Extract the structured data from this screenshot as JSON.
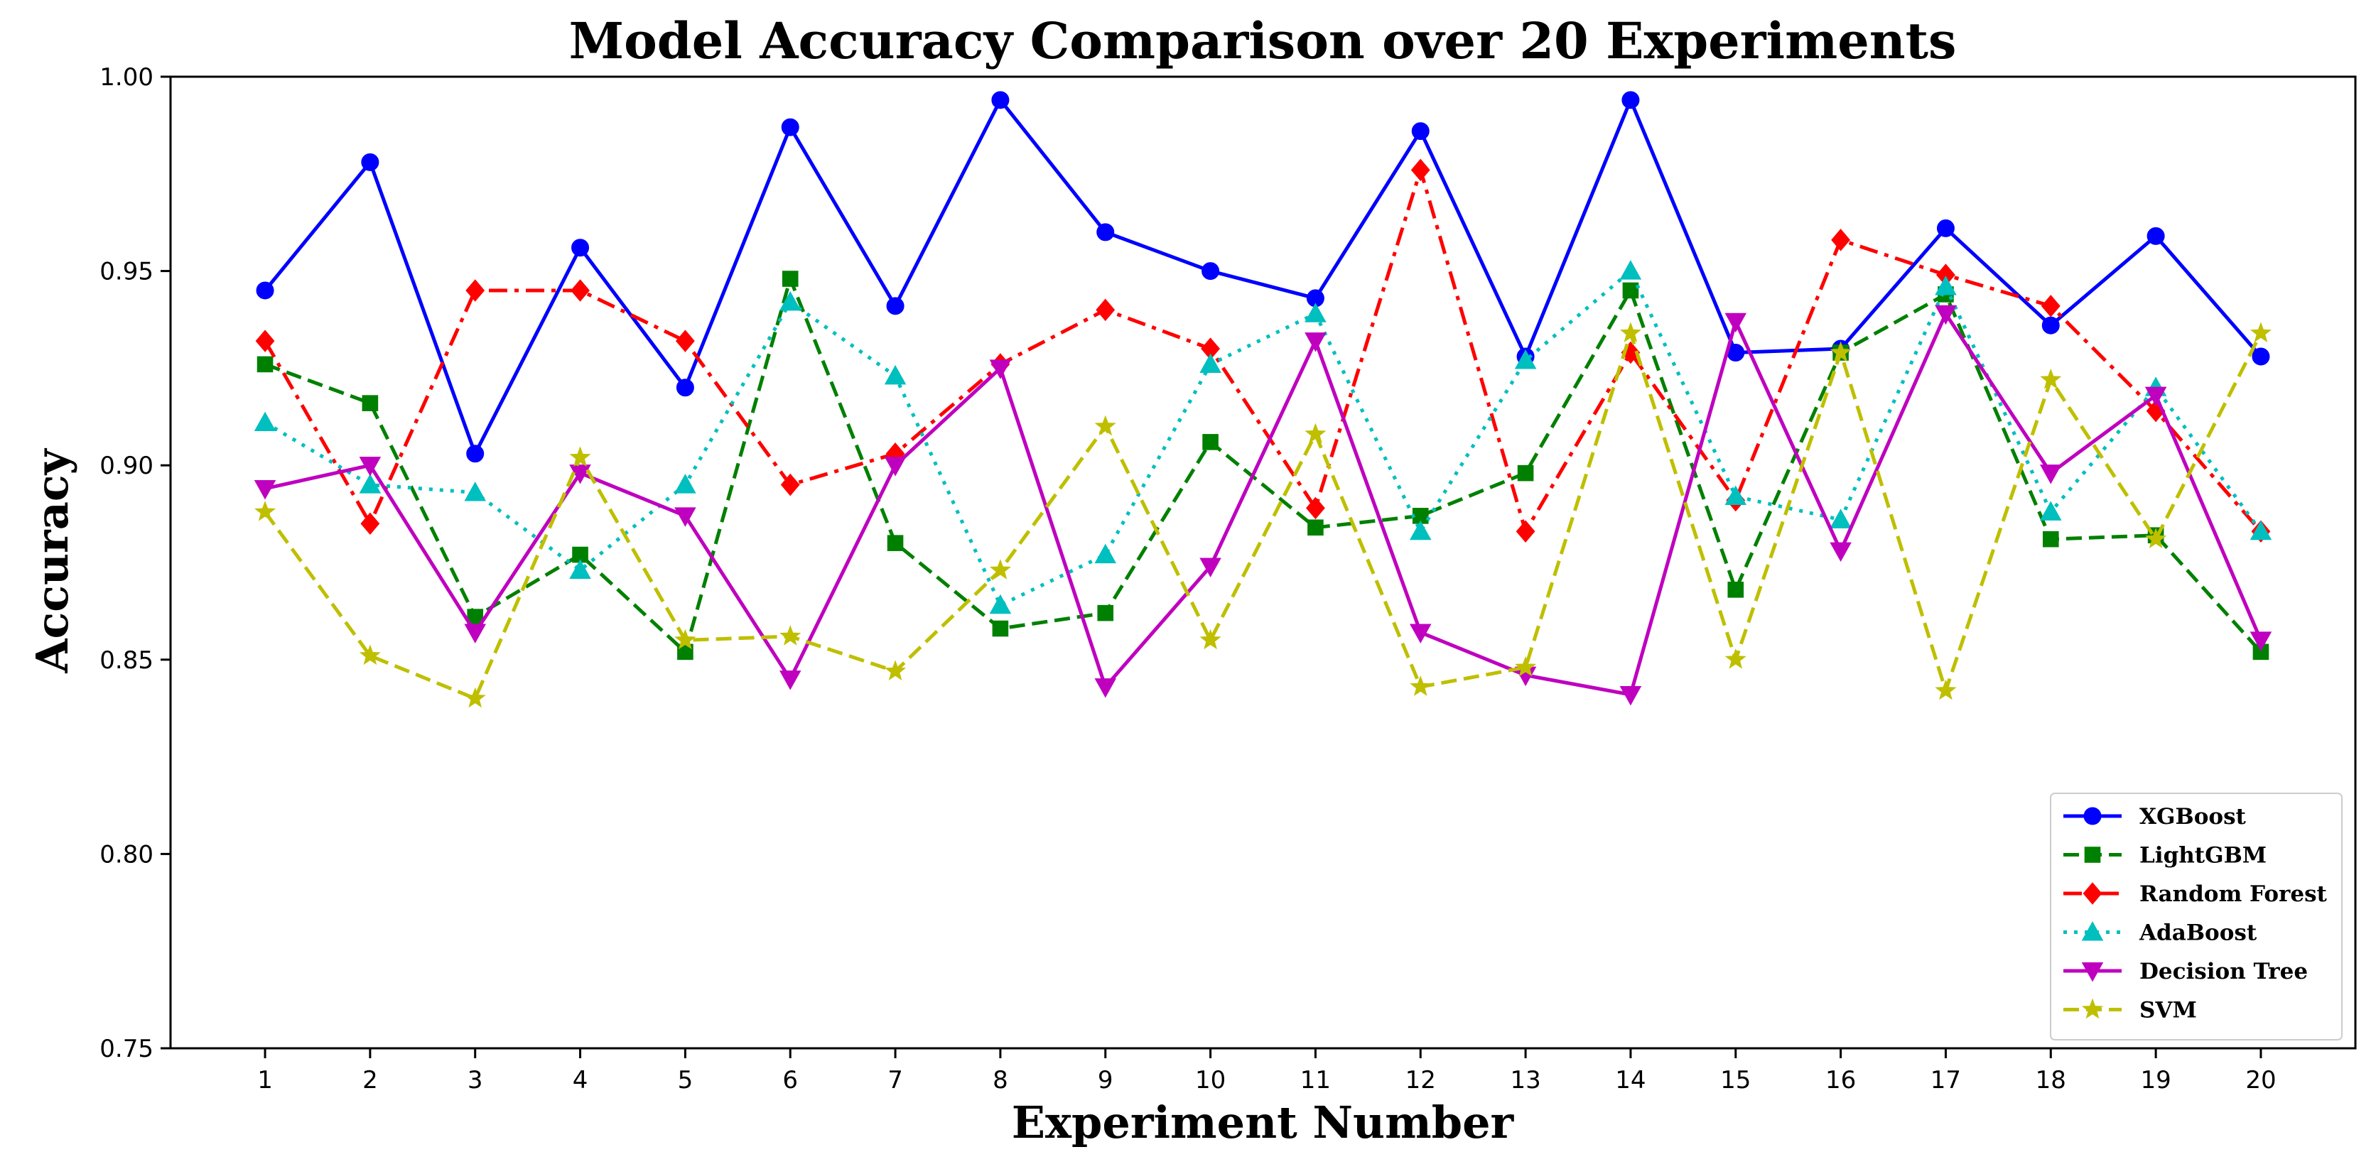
{
  "chart_data": {
    "type": "line",
    "title": "Model Accuracy Comparison over 20 Experiments",
    "xlabel": "Experiment Number",
    "ylabel": "Accuracy",
    "x": [
      1,
      2,
      3,
      4,
      5,
      6,
      7,
      8,
      9,
      10,
      11,
      12,
      13,
      14,
      15,
      16,
      17,
      18,
      19,
      20
    ],
    "xlim": [
      0.1,
      20.9
    ],
    "ylim": [
      0.75,
      1.0
    ],
    "yticks": [
      0.75,
      0.8,
      0.85,
      0.9,
      0.95,
      1.0
    ],
    "ytick_labels": [
      "0.75",
      "0.80",
      "0.85",
      "0.90",
      "0.95",
      "1.00"
    ],
    "xtick_labels": [
      "1",
      "2",
      "3",
      "4",
      "5",
      "6",
      "7",
      "8",
      "9",
      "10",
      "11",
      "12",
      "13",
      "14",
      "15",
      "16",
      "17",
      "18",
      "19",
      "20"
    ],
    "grid": false,
    "legend_position": "bottom-right",
    "series": [
      {
        "name": "XGBoost",
        "color": "#0000ff",
        "marker": "circle",
        "dash": "solid",
        "values": [
          0.945,
          0.978,
          0.903,
          0.956,
          0.92,
          0.987,
          0.941,
          0.994,
          0.96,
          0.95,
          0.943,
          0.986,
          0.928,
          0.994,
          0.929,
          0.93,
          0.961,
          0.936,
          0.959,
          0.928
        ]
      },
      {
        "name": "LightGBM",
        "color": "#008000",
        "marker": "square",
        "dash": "dashed",
        "values": [
          0.926,
          0.916,
          0.861,
          0.877,
          0.852,
          0.948,
          0.88,
          0.858,
          0.862,
          0.906,
          0.884,
          0.887,
          0.898,
          0.945,
          0.868,
          0.929,
          0.944,
          0.881,
          0.882,
          0.852
        ]
      },
      {
        "name": "Random Forest",
        "color": "#ff0000",
        "marker": "diamond",
        "dash": "dashdot",
        "values": [
          0.932,
          0.885,
          0.945,
          0.945,
          0.932,
          0.895,
          0.903,
          0.926,
          0.94,
          0.93,
          0.889,
          0.976,
          0.883,
          0.929,
          0.891,
          0.958,
          0.949,
          0.941,
          0.914,
          0.883
        ]
      },
      {
        "name": "AdaBoost",
        "color": "#00bfbf",
        "marker": "triangle-up",
        "dash": "dotted",
        "values": [
          0.911,
          0.895,
          0.893,
          0.873,
          0.895,
          0.942,
          0.923,
          0.864,
          0.877,
          0.926,
          0.939,
          0.883,
          0.927,
          0.95,
          0.892,
          0.886,
          0.946,
          0.888,
          0.92,
          0.883
        ]
      },
      {
        "name": "Decision Tree",
        "color": "#bf00bf",
        "marker": "triangle-down",
        "dash": "solid",
        "values": [
          0.894,
          0.9,
          0.857,
          0.898,
          0.887,
          0.845,
          0.9,
          0.925,
          0.843,
          0.874,
          0.932,
          0.857,
          0.846,
          0.841,
          0.937,
          0.878,
          0.939,
          0.898,
          0.918,
          0.855
        ]
      },
      {
        "name": "SVM",
        "color": "#bfbf00",
        "marker": "star",
        "dash": "dashed",
        "values": [
          0.888,
          0.851,
          0.84,
          0.902,
          0.855,
          0.856,
          0.847,
          0.873,
          0.91,
          0.855,
          0.908,
          0.843,
          0.848,
          0.934,
          0.85,
          0.929,
          0.842,
          0.922,
          0.881,
          0.934
        ]
      }
    ]
  }
}
